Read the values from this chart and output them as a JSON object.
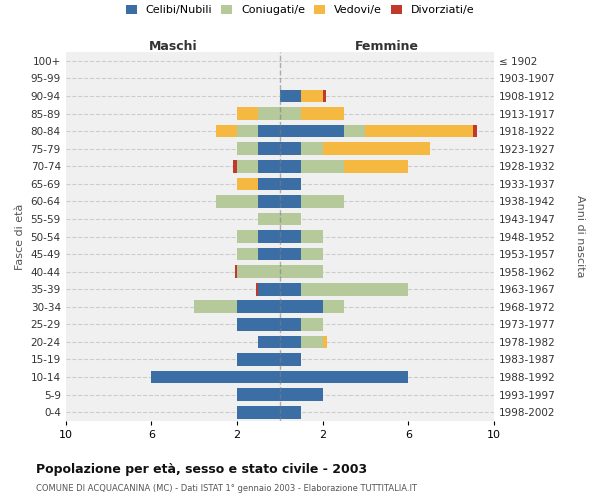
{
  "age_groups": [
    "100+",
    "95-99",
    "90-94",
    "85-89",
    "80-84",
    "75-79",
    "70-74",
    "65-69",
    "60-64",
    "55-59",
    "50-54",
    "45-49",
    "40-44",
    "35-39",
    "30-34",
    "25-29",
    "20-24",
    "15-19",
    "10-14",
    "5-9",
    "0-4"
  ],
  "birth_years": [
    "≤ 1902",
    "1903-1907",
    "1908-1912",
    "1913-1917",
    "1918-1922",
    "1923-1927",
    "1928-1932",
    "1933-1937",
    "1938-1942",
    "1943-1947",
    "1948-1952",
    "1953-1957",
    "1958-1962",
    "1963-1967",
    "1968-1972",
    "1973-1977",
    "1978-1982",
    "1983-1987",
    "1988-1992",
    "1993-1997",
    "1998-2002"
  ],
  "maschi": {
    "celibi": [
      0,
      0,
      0,
      0,
      1,
      1,
      1,
      1,
      1,
      0,
      1,
      1,
      0,
      1,
      2,
      2,
      1,
      2,
      6,
      2,
      2
    ],
    "coniugati": [
      0,
      0,
      0,
      1,
      1,
      1,
      1,
      0,
      2,
      1,
      1,
      1,
      2,
      0,
      2,
      0,
      0,
      0,
      0,
      0,
      0
    ],
    "vedovi": [
      0,
      0,
      0,
      1,
      1,
      0,
      0,
      1,
      0,
      0,
      0,
      0,
      0,
      0,
      0,
      0,
      0,
      0,
      0,
      0,
      0
    ],
    "divorziati": [
      0,
      0,
      0,
      0,
      0,
      0,
      0.2,
      0,
      0,
      0,
      0,
      0,
      0.1,
      0.1,
      0,
      0,
      0,
      0,
      0,
      0,
      0
    ]
  },
  "femmine": {
    "celibi": [
      0,
      0,
      1,
      0,
      3,
      1,
      1,
      1,
      1,
      0,
      1,
      1,
      0,
      1,
      2,
      1,
      1,
      1,
      6,
      2,
      1
    ],
    "coniugati": [
      0,
      0,
      0,
      1,
      1,
      1,
      2,
      0,
      2,
      1,
      1,
      1,
      2,
      5,
      1,
      1,
      1,
      0,
      0,
      0,
      0
    ],
    "vedovi": [
      0,
      0,
      1,
      2,
      5,
      5,
      3,
      0,
      0,
      0,
      0,
      0,
      0,
      0,
      0,
      0,
      0.2,
      0,
      0,
      0,
      0
    ],
    "divorziati": [
      0,
      0,
      0.15,
      0,
      0.2,
      0,
      0,
      0,
      0,
      0,
      0,
      0,
      0,
      0,
      0,
      0,
      0,
      0,
      0,
      0,
      0
    ]
  },
  "colors": {
    "celibi": "#3a6ea5",
    "coniugati": "#b5c99a",
    "vedovi": "#f5b942",
    "divorziati": "#c0392b"
  },
  "legend_labels": [
    "Celibi/Nubili",
    "Coniugati/e",
    "Vedovi/e",
    "Divorziati/e"
  ],
  "title": "Popolazione per età, sesso e stato civile - 2003",
  "subtitle": "COMUNE DI ACQUACANINA (MC) - Dati ISTAT 1° gennaio 2003 - Elaborazione TUTTITALIA.IT",
  "xlabel_left": "Maschi",
  "xlabel_right": "Femmine",
  "ylabel_left": "Fasce di età",
  "ylabel_right": "Anni di nascita",
  "xlim": 10,
  "xticks": [
    -10,
    -6,
    -2,
    2,
    6,
    10
  ],
  "background_color": "#f0f0f0"
}
